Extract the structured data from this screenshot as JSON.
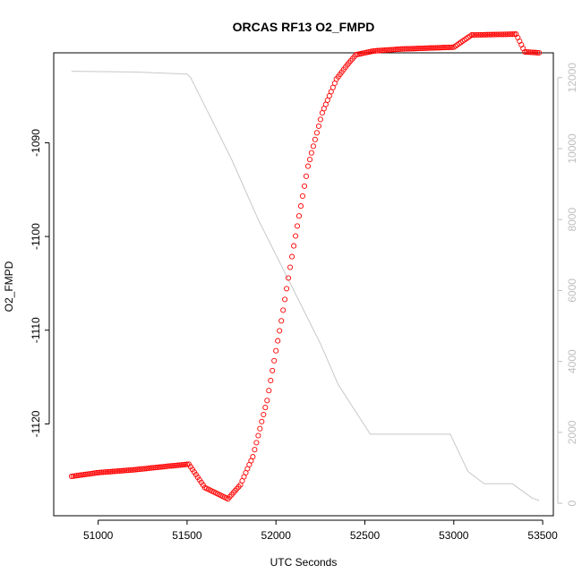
{
  "chart_data": {
    "type": "scatter",
    "title": "ORCAS RF13 O2_FMPD",
    "xlabel": "UTC Seconds",
    "ylabel": "O2_FMPD",
    "xlim": [
      50750,
      53560
    ],
    "ylim": [
      -1129.8,
      -1080.4
    ],
    "y2lim": [
      -350,
      12700
    ],
    "x_ticks": [
      51000,
      51500,
      52000,
      52500,
      53000,
      53500
    ],
    "x_tick_labels": [
      "51000",
      "51500",
      "52000",
      "52500",
      "53000",
      "53500"
    ],
    "y_ticks": [
      -1120,
      -1110,
      -1100,
      -1090
    ],
    "y_tick_labels": [
      "-1120",
      "-1110",
      "-1100",
      "-1090"
    ],
    "y2_ticks": [
      0,
      2000,
      4000,
      6000,
      8000,
      10000,
      12000
    ],
    "y2_tick_labels": [
      "0",
      "2000",
      "4000",
      "6000",
      "8000",
      "10000",
      "12000"
    ],
    "grid": false,
    "legend": "none",
    "colors": {
      "points": "#ff0000",
      "altitude_line": "#c8c8c8",
      "right_axis": "#bfbfbf",
      "axis": "#000000"
    },
    "series": [
      {
        "marker": "open-circle",
        "color": "#ff0000",
        "axis": "left",
        "points": [
          [
            50850,
            -1125.6
          ],
          [
            51000,
            -1125.2
          ],
          [
            51200,
            -1124.9
          ],
          [
            51400,
            -1124.5
          ],
          [
            51510,
            -1124.3
          ],
          [
            51600,
            -1126.8
          ],
          [
            51730,
            -1128.0
          ],
          [
            51800,
            -1126.5
          ],
          [
            51870,
            -1123.5
          ],
          [
            51950,
            -1117.5
          ],
          [
            52030,
            -1109.0
          ],
          [
            52100,
            -1101.0
          ],
          [
            52180,
            -1092.5
          ],
          [
            52260,
            -1086.8
          ],
          [
            52340,
            -1083.2
          ],
          [
            52400,
            -1081.7
          ],
          [
            52450,
            -1080.6
          ],
          [
            52550,
            -1080.2
          ],
          [
            52700,
            -1080.0
          ],
          [
            53000,
            -1079.8
          ],
          [
            53100,
            -1078.5
          ],
          [
            53350,
            -1078.4
          ],
          [
            53400,
            -1080.3
          ],
          [
            53480,
            -1080.4
          ]
        ]
      },
      {
        "marker": "line",
        "color": "#c8c8c8",
        "axis": "right",
        "points": [
          [
            50850,
            12180
          ],
          [
            51200,
            12160
          ],
          [
            51500,
            12100
          ],
          [
            51520,
            12000
          ],
          [
            51620,
            11000
          ],
          [
            51750,
            9700
          ],
          [
            51900,
            8000
          ],
          [
            52100,
            6000
          ],
          [
            52250,
            4500
          ],
          [
            52350,
            3350
          ],
          [
            52530,
            1950
          ],
          [
            52700,
            1950
          ],
          [
            52980,
            1950
          ],
          [
            53080,
            900
          ],
          [
            53170,
            550
          ],
          [
            53330,
            550
          ],
          [
            53440,
            150
          ],
          [
            53480,
            80
          ]
        ]
      }
    ]
  }
}
